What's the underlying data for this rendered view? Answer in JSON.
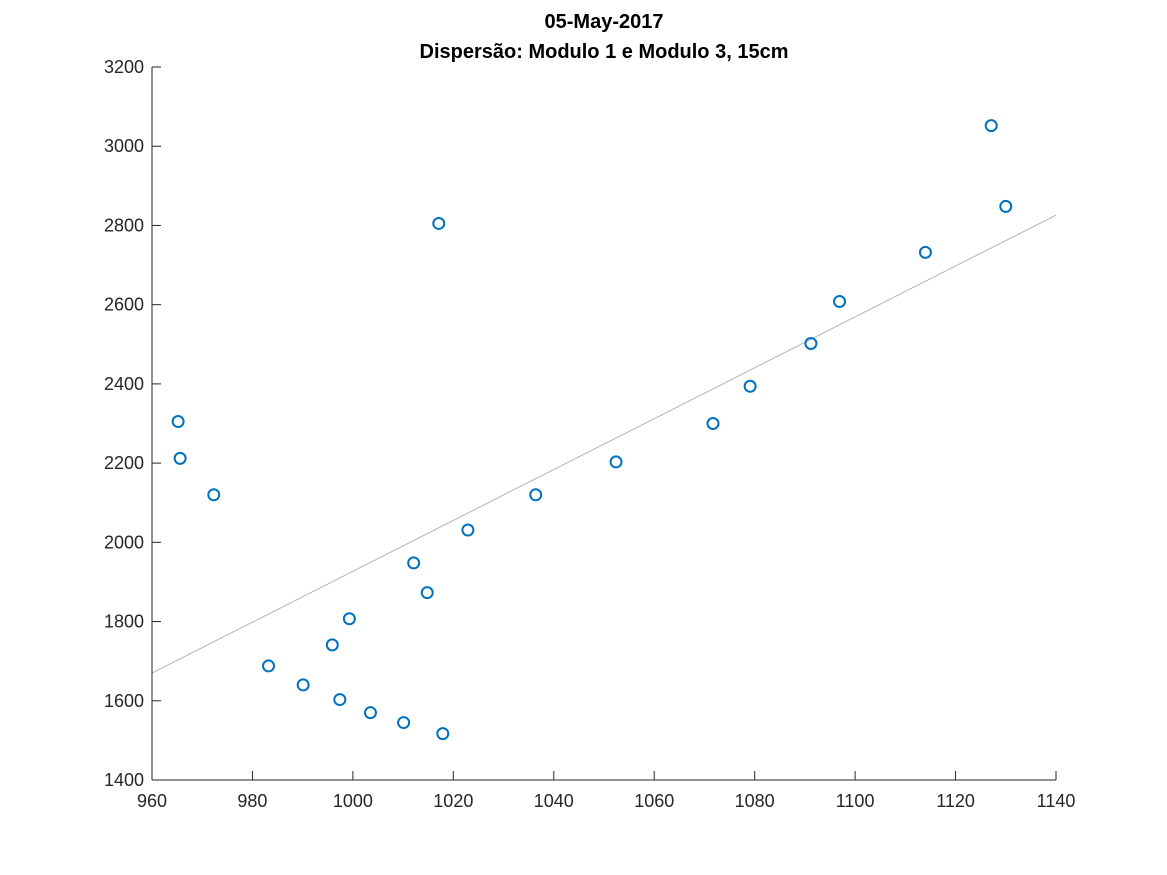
{
  "chart_data": {
    "type": "scatter",
    "title": "05-May-2017",
    "subtitle": "Dispersão: Modulo 1 e Modulo 3, 15cm",
    "xlabel": "",
    "ylabel": "",
    "xlim": [
      960,
      1140
    ],
    "ylim": [
      1400,
      3200
    ],
    "xticks": [
      960,
      980,
      1000,
      1020,
      1040,
      1060,
      1080,
      1100,
      1120,
      1140
    ],
    "yticks": [
      1400,
      1600,
      1800,
      2000,
      2200,
      2400,
      2600,
      2800,
      3000,
      3200
    ],
    "grid": false,
    "marker_color": "#0072BD",
    "fit_line_color": "#B4B4B4",
    "points": [
      {
        "x": 965.2,
        "y": 2305
      },
      {
        "x": 965.6,
        "y": 2212
      },
      {
        "x": 972.3,
        "y": 2120
      },
      {
        "x": 983.2,
        "y": 1688
      },
      {
        "x": 990.1,
        "y": 1640
      },
      {
        "x": 995.9,
        "y": 1741
      },
      {
        "x": 997.4,
        "y": 1603
      },
      {
        "x": 999.3,
        "y": 1807
      },
      {
        "x": 1003.5,
        "y": 1570
      },
      {
        "x": 1010.1,
        "y": 1545
      },
      {
        "x": 1012.1,
        "y": 1948
      },
      {
        "x": 1014.8,
        "y": 1873
      },
      {
        "x": 1017.1,
        "y": 2805
      },
      {
        "x": 1017.9,
        "y": 1517
      },
      {
        "x": 1022.9,
        "y": 2031
      },
      {
        "x": 1036.4,
        "y": 2120
      },
      {
        "x": 1052.4,
        "y": 2203
      },
      {
        "x": 1071.7,
        "y": 2300
      },
      {
        "x": 1079.1,
        "y": 2394
      },
      {
        "x": 1091.2,
        "y": 2502
      },
      {
        "x": 1096.9,
        "y": 2608
      },
      {
        "x": 1114.0,
        "y": 2732
      },
      {
        "x": 1127.1,
        "y": 3052
      },
      {
        "x": 1130.0,
        "y": 2848
      }
    ],
    "fit_line": {
      "x": [
        960,
        1140
      ],
      "y": [
        1670,
        2826
      ]
    }
  }
}
